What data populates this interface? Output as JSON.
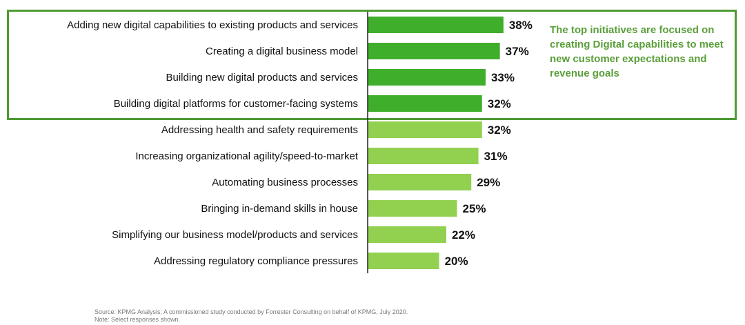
{
  "chart_data": {
    "type": "bar",
    "orientation": "horizontal",
    "categories": [
      "Adding new digital capabilities to existing products and services",
      "Creating a digital business model",
      "Building new digital products and services",
      "Building digital platforms for customer-facing systems",
      "Addressing health and safety requirements",
      "Increasing organizational agility/speed-to-market",
      "Automating business processes",
      "Bringing in-demand skills in house",
      "Simplifying our business model/products and services",
      "Addressing regulatory compliance pressures"
    ],
    "values": [
      38,
      37,
      33,
      32,
      32,
      31,
      29,
      25,
      22,
      20
    ],
    "value_labels": [
      "38%",
      "37%",
      "33%",
      "32%",
      "32%",
      "31%",
      "29%",
      "25%",
      "22%",
      "20%"
    ],
    "highlighted_count": 4,
    "colors": {
      "highlighted": "#3fae2a",
      "other": "#92d050",
      "box": "#4e9a33",
      "annotation": "#5a9f3a"
    },
    "grid": false,
    "annotation": "The top initiatives are focused on creating Digital capabilities to meet new customer expectations and revenue goals"
  },
  "footer": {
    "source": "Source: KPMG Analysis; A commissioned study conducted by Forrester Consulting on behalf of KPMG, July 2020.",
    "note": "Note: Select responses shown."
  }
}
